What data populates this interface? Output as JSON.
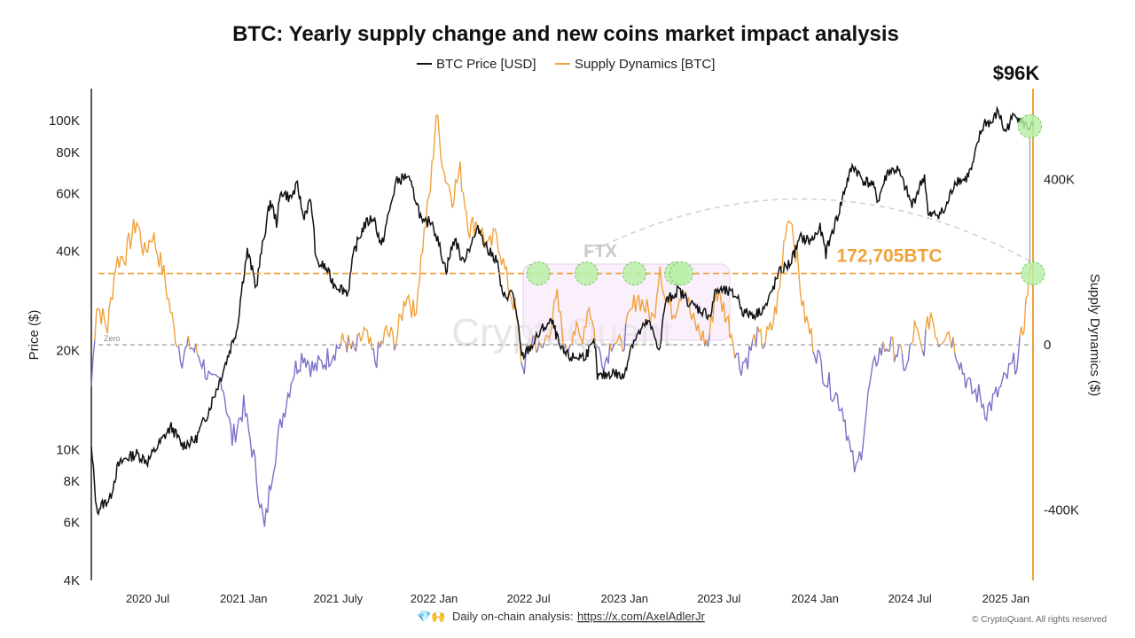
{
  "chart_data": {
    "type": "line",
    "title": "BTC: Yearly supply change and new coins market impact analysis",
    "legend": [
      {
        "name": "BTC Price [USD]",
        "color": "#111111"
      },
      {
        "name": "Supply Dynamics [BTC]",
        "color": "#f0a23c"
      }
    ],
    "legend_position": "top-center",
    "ylabel_left": "Price ($)",
    "ylabel_right": "Supply Dynamics ($)",
    "y_left_scale": "log",
    "y_left_range": [
      4000,
      125000
    ],
    "y_left_ticks": [
      {
        "value": 4000,
        "label": "4K"
      },
      {
        "value": 6000,
        "label": "6K"
      },
      {
        "value": 8000,
        "label": "8K"
      },
      {
        "value": 10000,
        "label": "10K"
      },
      {
        "value": 20000,
        "label": "20K"
      },
      {
        "value": 40000,
        "label": "40K"
      },
      {
        "value": 60000,
        "label": "60K"
      },
      {
        "value": 80000,
        "label": "80K"
      },
      {
        "value": 100000,
        "label": "100K"
      }
    ],
    "y_right_range": [
      -570000,
      620000
    ],
    "y_right_ticks": [
      {
        "value": 400000,
        "label": "400K"
      },
      {
        "value": 0,
        "label": "0"
      },
      {
        "value": -400000,
        "label": "-400K"
      }
    ],
    "x_range": [
      "2020-03-15",
      "2025-02-22"
    ],
    "x_ticks": [
      {
        "value": "2020-07-01",
        "label": "2020 Jul"
      },
      {
        "value": "2021-01-01",
        "label": "2021 Jan"
      },
      {
        "value": "2021-07-01",
        "label": "2021 July"
      },
      {
        "value": "2022-01-01",
        "label": "2022 Jan"
      },
      {
        "value": "2022-07-01",
        "label": "2022 Jul"
      },
      {
        "value": "2023-01-01",
        "label": "2023 Jan"
      },
      {
        "value": "2023-07-01",
        "label": "2023 Jul"
      },
      {
        "value": "2024-01-01",
        "label": "2024 Jan"
      },
      {
        "value": "2024-07-01",
        "label": "2024 Jul"
      },
      {
        "value": "2025-01-01",
        "label": "2025 Jan"
      }
    ],
    "colors": {
      "price": "#111111",
      "supply_positive": "#f0a23c",
      "supply_negative": "#7b72c9",
      "threshold": "#f0a23c",
      "marker": "#b8f0a8"
    },
    "series": [
      {
        "name": "BTC Price [USD]",
        "points": [
          [
            "2020-03-15",
            10000
          ],
          [
            "2020-03-25",
            6500
          ],
          [
            "2020-04-05",
            6800
          ],
          [
            "2020-04-20",
            7100
          ],
          [
            "2020-05-05",
            8900
          ],
          [
            "2020-05-20",
            9400
          ],
          [
            "2020-06-10",
            9700
          ],
          [
            "2020-07-01",
            9200
          ],
          [
            "2020-07-25",
            10500
          ],
          [
            "2020-08-15",
            11700
          ],
          [
            "2020-09-05",
            10300
          ],
          [
            "2020-10-01",
            10700
          ],
          [
            "2020-10-25",
            13000
          ],
          [
            "2020-11-15",
            16000
          ],
          [
            "2020-12-01",
            19000
          ],
          [
            "2020-12-20",
            23500
          ],
          [
            "2021-01-08",
            40000
          ],
          [
            "2021-01-25",
            31000
          ],
          [
            "2021-02-10",
            45000
          ],
          [
            "2021-02-21",
            57000
          ],
          [
            "2021-03-05",
            49000
          ],
          [
            "2021-03-14",
            61000
          ],
          [
            "2021-04-01",
            58000
          ],
          [
            "2021-04-14",
            63500
          ],
          [
            "2021-04-25",
            51000
          ],
          [
            "2021-05-10",
            57000
          ],
          [
            "2021-05-20",
            37000
          ],
          [
            "2021-06-05",
            36000
          ],
          [
            "2021-06-22",
            32000
          ],
          [
            "2021-07-20",
            30000
          ],
          [
            "2021-08-01",
            40000
          ],
          [
            "2021-08-20",
            48000
          ],
          [
            "2021-09-07",
            51000
          ],
          [
            "2021-09-22",
            41000
          ],
          [
            "2021-10-10",
            55000
          ],
          [
            "2021-10-20",
            65000
          ],
          [
            "2021-11-10",
            68000
          ],
          [
            "2021-11-28",
            57000
          ],
          [
            "2021-12-10",
            48000
          ],
          [
            "2021-12-27",
            50000
          ],
          [
            "2022-01-10",
            42000
          ],
          [
            "2022-01-24",
            35000
          ],
          [
            "2022-02-10",
            44000
          ],
          [
            "2022-02-24",
            37000
          ],
          [
            "2022-03-28",
            47000
          ],
          [
            "2022-04-15",
            40000
          ],
          [
            "2022-05-01",
            38000
          ],
          [
            "2022-05-12",
            29000
          ],
          [
            "2022-06-01",
            30000
          ],
          [
            "2022-06-18",
            19000
          ],
          [
            "2022-07-10",
            21000
          ],
          [
            "2022-07-30",
            23500
          ],
          [
            "2022-08-15",
            24400
          ],
          [
            "2022-09-01",
            20000
          ],
          [
            "2022-09-20",
            19000
          ],
          [
            "2022-10-15",
            19200
          ],
          [
            "2022-11-05",
            21000
          ],
          [
            "2022-11-10",
            16500
          ],
          [
            "2022-12-10",
            17200
          ],
          [
            "2022-12-30",
            16500
          ],
          [
            "2023-01-15",
            21000
          ],
          [
            "2023-02-15",
            24500
          ],
          [
            "2023-03-10",
            20000
          ],
          [
            "2023-03-20",
            28000
          ],
          [
            "2023-04-14",
            30500
          ],
          [
            "2023-05-10",
            27500
          ],
          [
            "2023-06-15",
            25500
          ],
          [
            "2023-06-25",
            30500
          ],
          [
            "2023-07-15",
            30200
          ],
          [
            "2023-08-05",
            29200
          ],
          [
            "2023-08-17",
            26000
          ],
          [
            "2023-09-10",
            25800
          ],
          [
            "2023-10-01",
            27500
          ],
          [
            "2023-10-25",
            34500
          ],
          [
            "2023-11-15",
            37000
          ],
          [
            "2023-12-05",
            44000
          ],
          [
            "2023-12-25",
            43000
          ],
          [
            "2024-01-11",
            47000
          ],
          [
            "2024-01-22",
            39500
          ],
          [
            "2024-02-15",
            52000
          ],
          [
            "2024-03-05",
            67000
          ],
          [
            "2024-03-14",
            73000
          ],
          [
            "2024-04-01",
            66000
          ],
          [
            "2024-04-20",
            64000
          ],
          [
            "2024-05-01",
            57000
          ],
          [
            "2024-05-20",
            70000
          ],
          [
            "2024-06-07",
            71000
          ],
          [
            "2024-07-05",
            55000
          ],
          [
            "2024-07-29",
            68000
          ],
          [
            "2024-08-05",
            51000
          ],
          [
            "2024-09-06",
            53000
          ],
          [
            "2024-09-27",
            66000
          ],
          [
            "2024-10-15",
            66000
          ],
          [
            "2024-10-29",
            72000
          ],
          [
            "2024-11-12",
            90000
          ],
          [
            "2024-11-22",
            99000
          ],
          [
            "2024-12-05",
            98000
          ],
          [
            "2024-12-17",
            107000
          ],
          [
            "2024-12-30",
            92000
          ],
          [
            "2025-01-20",
            106000
          ],
          [
            "2025-02-01",
            98000
          ],
          [
            "2025-02-12",
            96000
          ],
          [
            "2025-02-22",
            96000
          ]
        ]
      },
      {
        "name": "Supply Dynamics [BTC]",
        "points": [
          [
            "2020-03-15",
            -100000
          ],
          [
            "2020-03-25",
            100000
          ],
          [
            "2020-04-15",
            40000
          ],
          [
            "2020-05-01",
            200000
          ],
          [
            "2020-05-20",
            220000
          ],
          [
            "2020-06-10",
            300000
          ],
          [
            "2020-06-25",
            220000
          ],
          [
            "2020-07-10",
            270000
          ],
          [
            "2020-08-01",
            170000
          ],
          [
            "2020-08-20",
            40000
          ],
          [
            "2020-09-05",
            -30000
          ],
          [
            "2020-09-20",
            0
          ],
          [
            "2020-10-10",
            -30000
          ],
          [
            "2020-11-01",
            -100000
          ],
          [
            "2020-11-20",
            -80000
          ],
          [
            "2020-12-10",
            -230000
          ],
          [
            "2021-01-01",
            -150000
          ],
          [
            "2021-01-20",
            -270000
          ],
          [
            "2021-02-10",
            -450000
          ],
          [
            "2021-02-25",
            -300000
          ],
          [
            "2021-03-15",
            -180000
          ],
          [
            "2021-04-05",
            -70000
          ],
          [
            "2021-04-25",
            -20000
          ],
          [
            "2021-05-15",
            -60000
          ],
          [
            "2021-06-05",
            -40000
          ],
          [
            "2021-06-25",
            -10000
          ],
          [
            "2021-07-15",
            10000
          ],
          [
            "2021-08-01",
            -20000
          ],
          [
            "2021-08-20",
            30000
          ],
          [
            "2021-09-10",
            -40000
          ],
          [
            "2021-10-01",
            30000
          ],
          [
            "2021-10-20",
            10000
          ],
          [
            "2021-11-10",
            130000
          ],
          [
            "2021-11-25",
            70000
          ],
          [
            "2021-12-10",
            240000
          ],
          [
            "2021-12-25",
            380000
          ],
          [
            "2022-01-05",
            560000
          ],
          [
            "2022-01-20",
            420000
          ],
          [
            "2022-02-05",
            360000
          ],
          [
            "2022-02-20",
            420000
          ],
          [
            "2022-03-10",
            280000
          ],
          [
            "2022-03-25",
            300000
          ],
          [
            "2022-04-15",
            230000
          ],
          [
            "2022-05-01",
            270000
          ],
          [
            "2022-05-20",
            160000
          ],
          [
            "2022-06-05",
            90000
          ],
          [
            "2022-06-20",
            -60000
          ],
          [
            "2022-07-10",
            20000
          ],
          [
            "2022-07-25",
            -20000
          ],
          [
            "2022-08-10",
            40000
          ],
          [
            "2022-08-25",
            110000
          ],
          [
            "2022-09-10",
            -20000
          ],
          [
            "2022-09-25",
            40000
          ],
          [
            "2022-10-10",
            10000
          ],
          [
            "2022-10-25",
            100000
          ],
          [
            "2022-11-10",
            -10000
          ],
          [
            "2022-11-25",
            -40000
          ],
          [
            "2022-12-10",
            20000
          ],
          [
            "2022-12-25",
            -10000
          ],
          [
            "2023-01-10",
            60000
          ],
          [
            "2023-01-25",
            120000
          ],
          [
            "2023-02-10",
            90000
          ],
          [
            "2023-02-25",
            60000
          ],
          [
            "2023-03-10",
            200000
          ],
          [
            "2023-03-20",
            110000
          ],
          [
            "2023-04-05",
            80000
          ],
          [
            "2023-04-25",
            150000
          ],
          [
            "2023-05-10",
            60000
          ],
          [
            "2023-05-25",
            30000
          ],
          [
            "2023-06-10",
            0
          ],
          [
            "2023-06-25",
            130000
          ],
          [
            "2023-07-10",
            90000
          ],
          [
            "2023-07-25",
            30000
          ],
          [
            "2023-08-10",
            -50000
          ],
          [
            "2023-08-25",
            -30000
          ],
          [
            "2023-09-10",
            20000
          ],
          [
            "2023-09-25",
            5000
          ],
          [
            "2023-10-10",
            40000
          ],
          [
            "2023-10-25",
            130000
          ],
          [
            "2023-11-05",
            280000
          ],
          [
            "2023-11-15",
            320000
          ],
          [
            "2023-11-28",
            200000
          ],
          [
            "2023-12-10",
            80000
          ],
          [
            "2023-12-25",
            20000
          ],
          [
            "2024-01-10",
            -40000
          ],
          [
            "2024-01-25",
            -90000
          ],
          [
            "2024-02-10",
            -120000
          ],
          [
            "2024-02-25",
            -160000
          ],
          [
            "2024-03-10",
            -270000
          ],
          [
            "2024-03-20",
            -310000
          ],
          [
            "2024-03-30",
            -250000
          ],
          [
            "2024-04-15",
            -100000
          ],
          [
            "2024-05-01",
            -20000
          ],
          [
            "2024-05-20",
            0
          ],
          [
            "2024-06-10",
            -20000
          ],
          [
            "2024-06-25",
            -60000
          ],
          [
            "2024-07-10",
            40000
          ],
          [
            "2024-07-25",
            -20000
          ],
          [
            "2024-08-10",
            80000
          ],
          [
            "2024-08-25",
            10000
          ],
          [
            "2024-09-10",
            40000
          ],
          [
            "2024-09-25",
            0
          ],
          [
            "2024-10-10",
            -60000
          ],
          [
            "2024-10-25",
            -110000
          ],
          [
            "2024-11-10",
            -120000
          ],
          [
            "2024-11-25",
            -160000
          ],
          [
            "2024-12-10",
            -130000
          ],
          [
            "2024-12-25",
            -100000
          ],
          [
            "2025-01-10",
            -60000
          ],
          [
            "2025-01-25",
            -30000
          ],
          [
            "2025-02-05",
            60000
          ],
          [
            "2025-02-15",
            170000
          ],
          [
            "2025-02-22",
            172705
          ]
        ]
      }
    ],
    "annotations": [
      {
        "text": "$96K",
        "x": "2025-02-16",
        "y_price": 96000
      },
      {
        "text": "172,705BTC",
        "value": 172705
      },
      {
        "text": "FTX",
        "x_start": "2022-07-01",
        "x_end": "2023-08-01"
      },
      {
        "text": "Zero",
        "value": 0
      }
    ],
    "threshold_line": 172705,
    "highlight_points": [
      {
        "x": "2022-07-20",
        "axis": "supply",
        "value": 172705
      },
      {
        "x": "2022-10-20",
        "axis": "supply",
        "value": 172705
      },
      {
        "x": "2023-01-20",
        "axis": "supply",
        "value": 172705
      },
      {
        "x": "2023-04-10",
        "axis": "supply",
        "value": 172705
      },
      {
        "x": "2023-04-20",
        "axis": "supply",
        "value": 172705
      },
      {
        "x": "2025-02-22",
        "axis": "supply",
        "value": 172705
      },
      {
        "x": "2025-02-16",
        "axis": "price",
        "value": 96000
      }
    ],
    "grid": false,
    "watermark": "CryptoQuant"
  },
  "footer": {
    "icons": "💎🙌",
    "text": "Daily on-chain analysis: ",
    "link": "https://x.com/AxelAdlerJr",
    "copyright": "© CryptoQuant. All rights reserved"
  }
}
